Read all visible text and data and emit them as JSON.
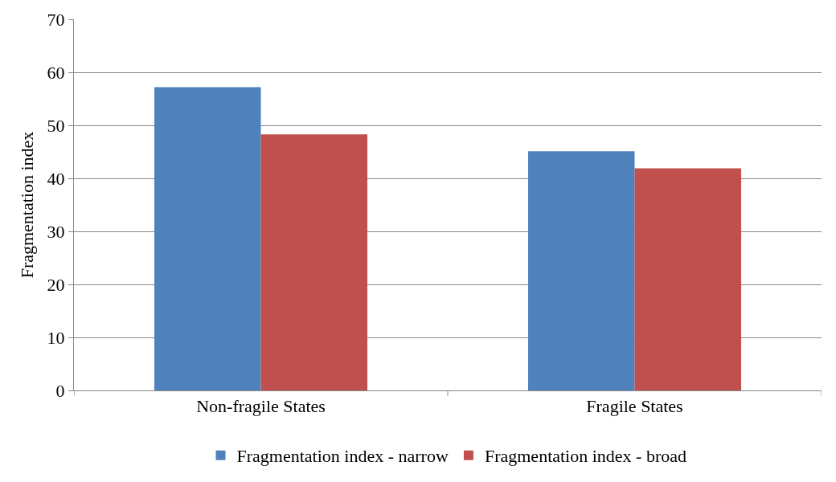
{
  "chart_data": {
    "type": "bar",
    "ylabel": "Fragmentation index",
    "categories": [
      "Non-fragile States",
      "Fragile States"
    ],
    "series": [
      {
        "name": "Fragmentation index - narrow",
        "color": "#4f81bd",
        "values": [
          57.2,
          45.1
        ]
      },
      {
        "name": "Fragmentation index - broad",
        "color": "#c0504d",
        "values": [
          48.3,
          41.9
        ]
      }
    ],
    "ylim": [
      0,
      70
    ],
    "yticks": [
      0,
      10,
      20,
      30,
      40,
      50,
      60,
      70
    ],
    "grid": "y",
    "legend": "bottom"
  }
}
